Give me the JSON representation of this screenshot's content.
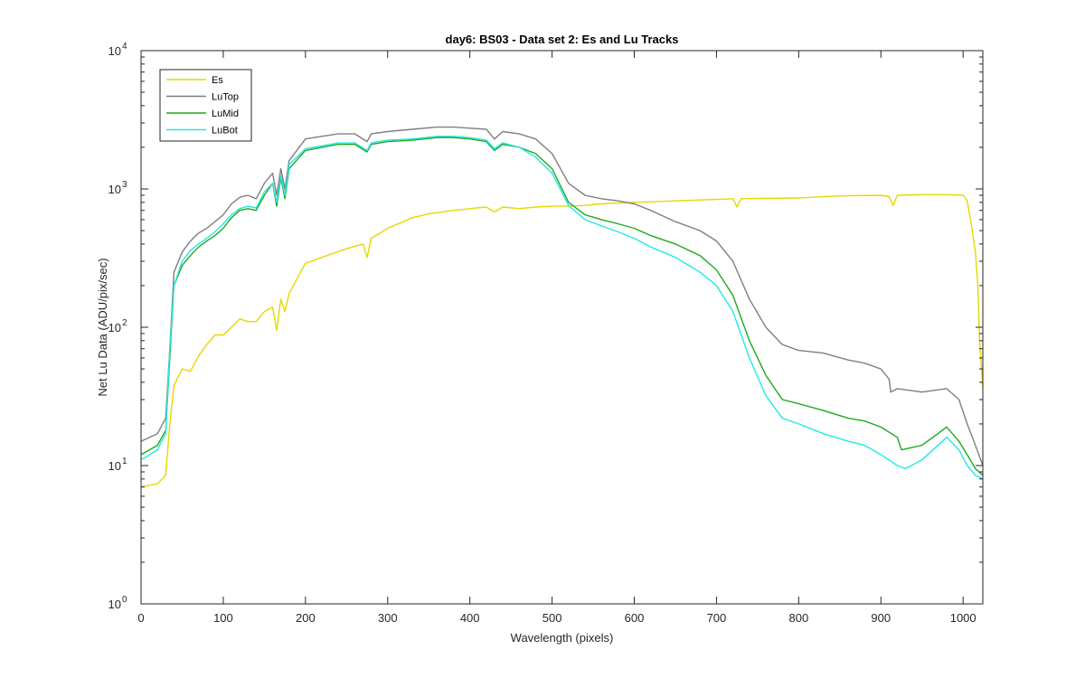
{
  "chart_data": {
    "type": "line",
    "title": "day6: BS03 - Data set 2: Es and Lu Tracks",
    "xlabel": "Wavelength (pixels)",
    "ylabel": "Net Lu Data (ADU/pix/sec)",
    "xlim": [
      0,
      1024
    ],
    "ylim": [
      1,
      10000
    ],
    "yscale": "log",
    "x_ticks": [
      0,
      100,
      200,
      300,
      400,
      500,
      600,
      700,
      800,
      900,
      1000
    ],
    "y_ticks": [
      {
        "value": 1,
        "base": "10",
        "exp": "0"
      },
      {
        "value": 10,
        "base": "10",
        "exp": "1"
      },
      {
        "value": 100,
        "base": "10",
        "exp": "2"
      },
      {
        "value": 1000,
        "base": "10",
        "exp": "3"
      },
      {
        "value": 10000,
        "base": "10",
        "exp": "4"
      }
    ],
    "grid": false,
    "legend_position": "top-left",
    "series": [
      {
        "name": "Es",
        "color": "#e6d800",
        "points": [
          [
            0,
            7
          ],
          [
            20,
            7.4
          ],
          [
            30,
            8.5
          ],
          [
            35,
            20
          ],
          [
            40,
            38
          ],
          [
            50,
            50
          ],
          [
            60,
            48
          ],
          [
            70,
            62
          ],
          [
            80,
            75
          ],
          [
            90,
            88
          ],
          [
            100,
            88
          ],
          [
            110,
            100
          ],
          [
            120,
            115
          ],
          [
            130,
            110
          ],
          [
            140,
            110
          ],
          [
            150,
            130
          ],
          [
            160,
            140
          ],
          [
            165,
            95
          ],
          [
            170,
            160
          ],
          [
            175,
            130
          ],
          [
            180,
            175
          ],
          [
            200,
            290
          ],
          [
            220,
            320
          ],
          [
            250,
            370
          ],
          [
            270,
            400
          ],
          [
            275,
            320
          ],
          [
            280,
            440
          ],
          [
            300,
            520
          ],
          [
            330,
            620
          ],
          [
            350,
            660
          ],
          [
            380,
            700
          ],
          [
            400,
            720
          ],
          [
            420,
            740
          ],
          [
            430,
            680
          ],
          [
            440,
            740
          ],
          [
            460,
            720
          ],
          [
            480,
            740
          ],
          [
            500,
            750
          ],
          [
            520,
            750
          ],
          [
            540,
            760
          ],
          [
            560,
            780
          ],
          [
            580,
            790
          ],
          [
            600,
            800
          ],
          [
            650,
            820
          ],
          [
            700,
            840
          ],
          [
            720,
            850
          ],
          [
            725,
            740
          ],
          [
            730,
            850
          ],
          [
            800,
            860
          ],
          [
            850,
            890
          ],
          [
            900,
            900
          ],
          [
            910,
            880
          ],
          [
            915,
            760
          ],
          [
            920,
            900
          ],
          [
            950,
            910
          ],
          [
            980,
            910
          ],
          [
            1000,
            900
          ],
          [
            1005,
            820
          ],
          [
            1010,
            550
          ],
          [
            1015,
            350
          ],
          [
            1018,
            200
          ],
          [
            1020,
            80
          ],
          [
            1024,
            37
          ]
        ]
      },
      {
        "name": "LuTop",
        "color": "#7f7f7f",
        "points": [
          [
            0,
            15
          ],
          [
            20,
            17
          ],
          [
            30,
            22
          ],
          [
            35,
            70
          ],
          [
            40,
            250
          ],
          [
            50,
            350
          ],
          [
            60,
            420
          ],
          [
            70,
            480
          ],
          [
            80,
            520
          ],
          [
            90,
            580
          ],
          [
            100,
            650
          ],
          [
            110,
            780
          ],
          [
            120,
            870
          ],
          [
            130,
            900
          ],
          [
            140,
            850
          ],
          [
            150,
            1100
          ],
          [
            160,
            1300
          ],
          [
            165,
            900
          ],
          [
            170,
            1400
          ],
          [
            175,
            1000
          ],
          [
            180,
            1600
          ],
          [
            200,
            2300
          ],
          [
            220,
            2400
          ],
          [
            240,
            2500
          ],
          [
            260,
            2500
          ],
          [
            275,
            2200
          ],
          [
            280,
            2500
          ],
          [
            300,
            2600
          ],
          [
            330,
            2700
          ],
          [
            360,
            2800
          ],
          [
            380,
            2800
          ],
          [
            400,
            2750
          ],
          [
            420,
            2700
          ],
          [
            430,
            2300
          ],
          [
            440,
            2600
          ],
          [
            460,
            2500
          ],
          [
            480,
            2300
          ],
          [
            500,
            1800
          ],
          [
            520,
            1100
          ],
          [
            540,
            900
          ],
          [
            560,
            850
          ],
          [
            580,
            820
          ],
          [
            600,
            780
          ],
          [
            620,
            700
          ],
          [
            650,
            580
          ],
          [
            680,
            500
          ],
          [
            700,
            420
          ],
          [
            720,
            300
          ],
          [
            740,
            160
          ],
          [
            760,
            100
          ],
          [
            780,
            75
          ],
          [
            800,
            68
          ],
          [
            830,
            65
          ],
          [
            860,
            58
          ],
          [
            880,
            55
          ],
          [
            900,
            50
          ],
          [
            910,
            42
          ],
          [
            912,
            34
          ],
          [
            920,
            36
          ],
          [
            950,
            34
          ],
          [
            980,
            36
          ],
          [
            995,
            30
          ],
          [
            1005,
            20
          ],
          [
            1015,
            14
          ],
          [
            1024,
            10
          ]
        ]
      },
      {
        "name": "LuMid",
        "color": "#1fa81f",
        "points": [
          [
            0,
            12
          ],
          [
            20,
            14
          ],
          [
            30,
            18
          ],
          [
            35,
            60
          ],
          [
            40,
            200
          ],
          [
            50,
            280
          ],
          [
            60,
            330
          ],
          [
            70,
            380
          ],
          [
            80,
            420
          ],
          [
            90,
            460
          ],
          [
            100,
            520
          ],
          [
            110,
            620
          ],
          [
            120,
            700
          ],
          [
            130,
            720
          ],
          [
            140,
            700
          ],
          [
            150,
            900
          ],
          [
            160,
            1100
          ],
          [
            165,
            750
          ],
          [
            170,
            1200
          ],
          [
            175,
            850
          ],
          [
            180,
            1400
          ],
          [
            200,
            1900
          ],
          [
            220,
            2000
          ],
          [
            240,
            2100
          ],
          [
            260,
            2100
          ],
          [
            275,
            1850
          ],
          [
            280,
            2100
          ],
          [
            300,
            2200
          ],
          [
            330,
            2250
          ],
          [
            360,
            2350
          ],
          [
            380,
            2350
          ],
          [
            400,
            2300
          ],
          [
            420,
            2200
          ],
          [
            430,
            1900
          ],
          [
            440,
            2100
          ],
          [
            460,
            2000
          ],
          [
            480,
            1800
          ],
          [
            500,
            1400
          ],
          [
            520,
            800
          ],
          [
            540,
            650
          ],
          [
            560,
            600
          ],
          [
            580,
            560
          ],
          [
            600,
            520
          ],
          [
            620,
            460
          ],
          [
            650,
            400
          ],
          [
            680,
            330
          ],
          [
            700,
            260
          ],
          [
            720,
            170
          ],
          [
            740,
            80
          ],
          [
            760,
            45
          ],
          [
            780,
            30
          ],
          [
            800,
            28
          ],
          [
            830,
            25
          ],
          [
            860,
            22
          ],
          [
            880,
            21
          ],
          [
            900,
            19
          ],
          [
            920,
            16
          ],
          [
            925,
            13
          ],
          [
            950,
            14
          ],
          [
            980,
            19
          ],
          [
            995,
            15
          ],
          [
            1005,
            12
          ],
          [
            1015,
            9.5
          ],
          [
            1024,
            8.5
          ]
        ]
      },
      {
        "name": "LuBot",
        "color": "#23e8e8",
        "points": [
          [
            0,
            11
          ],
          [
            20,
            13
          ],
          [
            30,
            17
          ],
          [
            35,
            70
          ],
          [
            40,
            200
          ],
          [
            50,
            300
          ],
          [
            60,
            360
          ],
          [
            70,
            400
          ],
          [
            80,
            440
          ],
          [
            90,
            490
          ],
          [
            100,
            560
          ],
          [
            110,
            650
          ],
          [
            120,
            720
          ],
          [
            130,
            750
          ],
          [
            140,
            730
          ],
          [
            150,
            950
          ],
          [
            160,
            1100
          ],
          [
            165,
            800
          ],
          [
            170,
            1250
          ],
          [
            175,
            900
          ],
          [
            180,
            1500
          ],
          [
            200,
            1950
          ],
          [
            220,
            2050
          ],
          [
            240,
            2150
          ],
          [
            260,
            2150
          ],
          [
            275,
            1900
          ],
          [
            280,
            2150
          ],
          [
            300,
            2250
          ],
          [
            330,
            2300
          ],
          [
            360,
            2400
          ],
          [
            380,
            2400
          ],
          [
            400,
            2350
          ],
          [
            420,
            2250
          ],
          [
            430,
            1950
          ],
          [
            440,
            2150
          ],
          [
            460,
            2000
          ],
          [
            480,
            1700
          ],
          [
            500,
            1300
          ],
          [
            520,
            760
          ],
          [
            540,
            600
          ],
          [
            560,
            540
          ],
          [
            580,
            490
          ],
          [
            600,
            440
          ],
          [
            620,
            380
          ],
          [
            650,
            320
          ],
          [
            680,
            250
          ],
          [
            700,
            200
          ],
          [
            720,
            130
          ],
          [
            740,
            60
          ],
          [
            760,
            32
          ],
          [
            780,
            22
          ],
          [
            800,
            20
          ],
          [
            830,
            17
          ],
          [
            860,
            15
          ],
          [
            880,
            14
          ],
          [
            900,
            12
          ],
          [
            920,
            10
          ],
          [
            930,
            9.5
          ],
          [
            950,
            11
          ],
          [
            980,
            16
          ],
          [
            995,
            13
          ],
          [
            1005,
            10
          ],
          [
            1015,
            8.5
          ],
          [
            1024,
            8
          ]
        ]
      }
    ]
  }
}
